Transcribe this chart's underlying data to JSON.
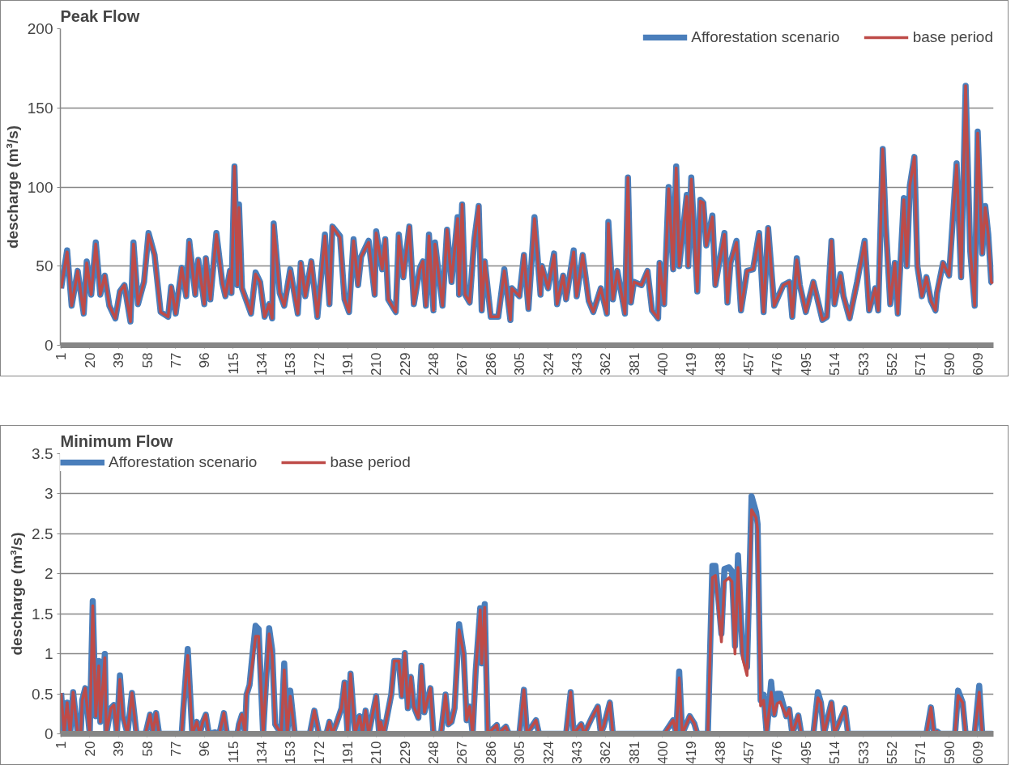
{
  "chart_data": [
    {
      "type": "line",
      "title": "Peak Flow",
      "ylabel": "descharge (m³/s)",
      "xlim": [
        0.5,
        619.5
      ],
      "xticks": [
        1,
        20,
        39,
        58,
        77,
        96,
        115,
        134,
        153,
        172,
        191,
        210,
        229,
        248,
        267,
        286,
        305,
        324,
        343,
        362,
        381,
        400,
        419,
        438,
        457,
        476,
        495,
        514,
        533,
        552,
        571,
        590,
        609
      ],
      "ylim": [
        0,
        200
      ],
      "yticks": [
        0,
        50,
        100,
        150,
        200
      ],
      "grid": "y",
      "legend": "top right",
      "x": [
        1,
        5,
        8,
        12,
        16,
        18,
        21,
        24,
        27,
        30,
        33,
        37,
        40,
        43,
        47,
        49,
        52,
        56,
        59,
        63,
        67,
        72,
        74,
        77,
        81,
        84,
        86,
        90,
        92,
        96,
        97,
        100,
        104,
        108,
        110,
        113,
        114,
        116,
        118,
        119,
        121,
        127,
        130,
        133,
        136,
        139,
        141,
        142,
        146,
        149,
        153,
        158,
        160,
        163,
        167,
        171,
        176,
        179,
        181,
        186,
        189,
        192,
        195,
        198,
        200,
        205,
        209,
        210,
        214,
        216,
        218,
        223,
        225,
        228,
        232,
        235,
        239,
        241,
        243,
        245,
        248,
        249,
        254,
        257,
        260,
        264,
        265,
        267,
        269,
        272,
        275,
        278,
        280,
        282,
        286,
        291,
        295,
        299,
        300,
        305,
        308,
        311,
        315,
        319,
        320,
        324,
        328,
        330,
        334,
        336,
        341,
        343,
        347,
        351,
        354,
        359,
        363,
        364,
        367,
        370,
        375,
        377,
        379,
        381,
        386,
        390,
        393,
        397,
        398,
        401,
        404,
        407,
        409,
        411,
        416,
        417,
        419,
        423,
        425,
        427,
        429,
        433,
        435,
        441,
        443,
        445,
        449,
        452,
        456,
        460,
        464,
        467,
        470,
        474,
        480,
        484,
        486,
        489,
        491,
        495,
        500,
        506,
        509,
        512,
        514,
        518,
        520,
        524,
        529,
        534,
        537,
        541,
        543,
        546,
        548,
        551,
        554,
        556,
        560,
        562,
        564,
        567,
        569,
        572,
        575,
        578,
        581,
        582,
        586,
        590,
        595,
        598,
        601,
        604,
        607,
        609,
        612,
        614,
        616,
        618,
        619
      ],
      "series": [
        {
          "name": "Afforestation scenario",
          "color": "#4a7ebb",
          "values": [
            36,
            60,
            25,
            47,
            20,
            53,
            32,
            65,
            32,
            44,
            25,
            17,
            34,
            38,
            15,
            65,
            26,
            40,
            71,
            57,
            21,
            18,
            37,
            20,
            49,
            31,
            66,
            32,
            54,
            26,
            55,
            29,
            71,
            39,
            31,
            47,
            33,
            113,
            38,
            89,
            36,
            20,
            46,
            40,
            18,
            26,
            17,
            77,
            33,
            25,
            48,
            20,
            52,
            31,
            53,
            18,
            70,
            26,
            75,
            69,
            29,
            21,
            67,
            38,
            56,
            66,
            32,
            72,
            48,
            67,
            29,
            21,
            70,
            43,
            75,
            26,
            49,
            53,
            25,
            70,
            22,
            65,
            25,
            73,
            40,
            81,
            32,
            89,
            32,
            27,
            66,
            88,
            22,
            53,
            18,
            18,
            48,
            16,
            36,
            31,
            57,
            23,
            81,
            32,
            50,
            36,
            58,
            26,
            44,
            29,
            60,
            31,
            57,
            28,
            21,
            36,
            20,
            78,
            29,
            47,
            20,
            106,
            27,
            40,
            38,
            47,
            22,
            17,
            52,
            26,
            100,
            48,
            113,
            50,
            95,
            50,
            106,
            34,
            92,
            90,
            63,
            82,
            38,
            71,
            27,
            52,
            66,
            22,
            47,
            48,
            71,
            21,
            74,
            25,
            38,
            40,
            18,
            55,
            38,
            21,
            40,
            16,
            18,
            66,
            26,
            45,
            31,
            17,
            40,
            66,
            22,
            36,
            22,
            124,
            76,
            26,
            52,
            20,
            93,
            50,
            101,
            119,
            50,
            31,
            43,
            28,
            22,
            33,
            52,
            44,
            115,
            43,
            164,
            60,
            25,
            135,
            58,
            88,
            70,
            40,
            39
          ]
        },
        {
          "name": "base period",
          "color": "#be4b48",
          "values": [
            36,
            59,
            25,
            47,
            20,
            52,
            32,
            64,
            32,
            44,
            25,
            17,
            34,
            38,
            15,
            64,
            26,
            40,
            70,
            57,
            21,
            18,
            37,
            20,
            49,
            31,
            65,
            32,
            54,
            26,
            55,
            29,
            70,
            39,
            31,
            47,
            33,
            113,
            38,
            87,
            36,
            20,
            45,
            40,
            18,
            26,
            17,
            76,
            33,
            25,
            47,
            20,
            52,
            31,
            53,
            18,
            69,
            26,
            75,
            68,
            29,
            21,
            66,
            38,
            56,
            65,
            32,
            71,
            48,
            67,
            29,
            21,
            69,
            43,
            75,
            26,
            48,
            53,
            25,
            69,
            22,
            64,
            25,
            73,
            40,
            80,
            32,
            89,
            32,
            27,
            65,
            88,
            22,
            53,
            18,
            18,
            47,
            16,
            36,
            31,
            57,
            23,
            80,
            32,
            50,
            36,
            57,
            26,
            44,
            29,
            59,
            31,
            57,
            28,
            21,
            36,
            20,
            77,
            29,
            47,
            20,
            106,
            27,
            40,
            38,
            47,
            22,
            17,
            52,
            26,
            99,
            48,
            112,
            50,
            94,
            50,
            105,
            34,
            91,
            90,
            63,
            81,
            38,
            70,
            27,
            52,
            65,
            22,
            47,
            48,
            70,
            21,
            74,
            25,
            38,
            40,
            18,
            54,
            38,
            21,
            40,
            16,
            18,
            66,
            26,
            44,
            31,
            17,
            39,
            65,
            22,
            36,
            22,
            124,
            75,
            26,
            52,
            20,
            92,
            50,
            101,
            119,
            50,
            31,
            43,
            28,
            22,
            33,
            52,
            44,
            114,
            43,
            164,
            60,
            25,
            134,
            58,
            87,
            70,
            40,
            39
          ]
        }
      ]
    },
    {
      "type": "line",
      "title": "Minimum Flow",
      "ylabel": "descharge (m³/s)",
      "xlim": [
        0.5,
        619.5
      ],
      "xticks": [
        1,
        20,
        39,
        58,
        77,
        96,
        115,
        134,
        153,
        172,
        191,
        210,
        229,
        248,
        267,
        286,
        305,
        324,
        343,
        362,
        381,
        400,
        419,
        438,
        457,
        476,
        495,
        514,
        533,
        552,
        571,
        590,
        609
      ],
      "ylim": [
        0,
        3.5
      ],
      "yticks": [
        0,
        0.5,
        1,
        1.5,
        2,
        2.5,
        3,
        3.5
      ],
      "grid": "y",
      "legend": "top left",
      "x": [
        1,
        3,
        5,
        7,
        9,
        12,
        14,
        15,
        17,
        20,
        22,
        24,
        26,
        27,
        30,
        31,
        34,
        36,
        38,
        40,
        42,
        45,
        48,
        51,
        57,
        60,
        62,
        64,
        66,
        81,
        82,
        85,
        88,
        91,
        93,
        95,
        97,
        99,
        103,
        106,
        109,
        111,
        118,
        119,
        121,
        123,
        124,
        126,
        128,
        130,
        132,
        135,
        139,
        141,
        143,
        147,
        149,
        151,
        153,
        156,
        166,
        169,
        172,
        177,
        179,
        181,
        184,
        187,
        189,
        191,
        193,
        196,
        199,
        201,
        203,
        205,
        210,
        212,
        213,
        215,
        220,
        222,
        225,
        227,
        229,
        231,
        233,
        235,
        238,
        240,
        242,
        246,
        248,
        253,
        256,
        258,
        260,
        262,
        265,
        268,
        270,
        272,
        274,
        276,
        279,
        280,
        282,
        284,
        290,
        291,
        296,
        298,
        305,
        308,
        310,
        316,
        318,
        336,
        339,
        341,
        346,
        348,
        353,
        357,
        359,
        361,
        365,
        367,
        401,
        407,
        409,
        411,
        413,
        418,
        421,
        423,
        430,
        433,
        435,
        439,
        441,
        444,
        446,
        448,
        450,
        453,
        456,
        459,
        462,
        463,
        465,
        467,
        469,
        472,
        474,
        476,
        478,
        482,
        484,
        486,
        490,
        492,
        500,
        503,
        505,
        507,
        512,
        514,
        521,
        523,
        575,
        578,
        580,
        582,
        584,
        594,
        596,
        599,
        601,
        607,
        610,
        612,
        619
      ],
      "series": [
        {
          "name": "Afforestation scenario",
          "color": "#4a7ebb",
          "values": [
            0.51,
            0,
            0.39,
            0,
            0.52,
            0,
            0,
            0.42,
            0.57,
            0,
            1.66,
            0.22,
            0.91,
            0.15,
            1.0,
            0,
            0.32,
            0.36,
            0,
            0.73,
            0.22,
            0,
            0.51,
            0,
            0,
            0.24,
            0.02,
            0.26,
            0,
            0,
            0.29,
            1.06,
            0,
            0.15,
            0,
            0.15,
            0.24,
            0,
            0.02,
            0,
            0.26,
            0,
            0,
            0.12,
            0.24,
            0.02,
            0.49,
            0.61,
            1.0,
            1.35,
            1.31,
            0,
            1.32,
            1.05,
            0.12,
            0,
            0.88,
            0,
            0.54,
            0,
            0,
            0.29,
            0,
            0,
            0.15,
            0,
            0.15,
            0.32,
            0.64,
            0,
            0.75,
            0,
            0.22,
            0,
            0.29,
            0,
            0.47,
            0,
            0.15,
            0,
            0.49,
            0.91,
            0.91,
            0.47,
            1.01,
            0.32,
            0.71,
            0.34,
            0.2,
            0.85,
            0.27,
            0.57,
            0,
            0,
            0.49,
            0.12,
            0.15,
            0.32,
            1.37,
            1.0,
            0.17,
            0.34,
            0,
            0.78,
            1.57,
            0.88,
            1.62,
            0,
            0.11,
            0,
            0.09,
            0,
            0,
            0.55,
            0,
            0.17,
            0,
            0,
            0.52,
            0,
            0.12,
            0,
            0.2,
            0.34,
            0,
            0.1,
            0.39,
            0,
            0,
            0.17,
            0,
            0.78,
            0,
            0.22,
            0.13,
            0,
            0,
            2.1,
            2.1,
            1.25,
            2.06,
            2.08,
            2.03,
            1.1,
            2.23,
            1.03,
            0.83,
            2.97,
            2.77,
            2.62,
            0.42,
            0.49,
            0,
            0.65,
            0.24,
            0.5,
            0.5,
            0.22,
            0.31,
            0,
            0.23,
            0,
            0,
            0.52,
            0.39,
            0,
            0.39,
            0,
            0.32,
            0,
            0,
            0.33,
            0,
            0.03,
            0,
            0,
            0.54,
            0.39,
            0,
            0,
            0.6,
            0,
            0
          ]
        },
        {
          "name": "base period",
          "color": "#be4b48",
          "values": [
            0.51,
            0,
            0.39,
            0,
            0.52,
            0,
            0,
            0.42,
            0.57,
            0,
            1.6,
            0.22,
            0.85,
            0.15,
            0.95,
            0,
            0.32,
            0.36,
            0,
            0.68,
            0.22,
            0,
            0.51,
            0,
            0,
            0.24,
            0.02,
            0.26,
            0,
            0,
            0.29,
            0.98,
            0,
            0.15,
            0,
            0.15,
            0.24,
            0,
            0.02,
            0,
            0.26,
            0,
            0,
            0.12,
            0.24,
            0.02,
            0.49,
            0.61,
            0.9,
            1.22,
            1.22,
            0,
            1.25,
            0.98,
            0.12,
            0,
            0.8,
            0,
            0.47,
            0,
            0,
            0.29,
            0,
            0,
            0.15,
            0,
            0.15,
            0.32,
            0.64,
            0,
            0.75,
            0,
            0.22,
            0,
            0.29,
            0,
            0.47,
            0,
            0.15,
            0,
            0.49,
            0.91,
            0.91,
            0.47,
            1.01,
            0.32,
            0.71,
            0.34,
            0.2,
            0.85,
            0.27,
            0.57,
            0,
            0,
            0.49,
            0.12,
            0.15,
            0.32,
            1.3,
            1.0,
            0.17,
            0.34,
            0,
            0.78,
            1.55,
            0.88,
            1.58,
            0,
            0.11,
            0,
            0.09,
            0,
            0,
            0.55,
            0,
            0.17,
            0,
            0,
            0.52,
            0,
            0.12,
            0,
            0.2,
            0.34,
            0,
            0.1,
            0.39,
            0,
            0,
            0.17,
            0,
            0.7,
            0,
            0.22,
            0.13,
            0,
            0,
            1.95,
            1.98,
            1.15,
            1.9,
            1.95,
            1.9,
            1.0,
            2.08,
            0.95,
            0.73,
            2.8,
            2.7,
            2.55,
            0.35,
            0.42,
            0,
            0.52,
            0.24,
            0.38,
            0.4,
            0.22,
            0.31,
            0,
            0.23,
            0,
            0,
            0.45,
            0.39,
            0,
            0.39,
            0,
            0.32,
            0,
            0,
            0.33,
            0,
            0.03,
            0,
            0,
            0.48,
            0.39,
            0,
            0,
            0.52,
            0,
            0
          ]
        }
      ]
    }
  ]
}
